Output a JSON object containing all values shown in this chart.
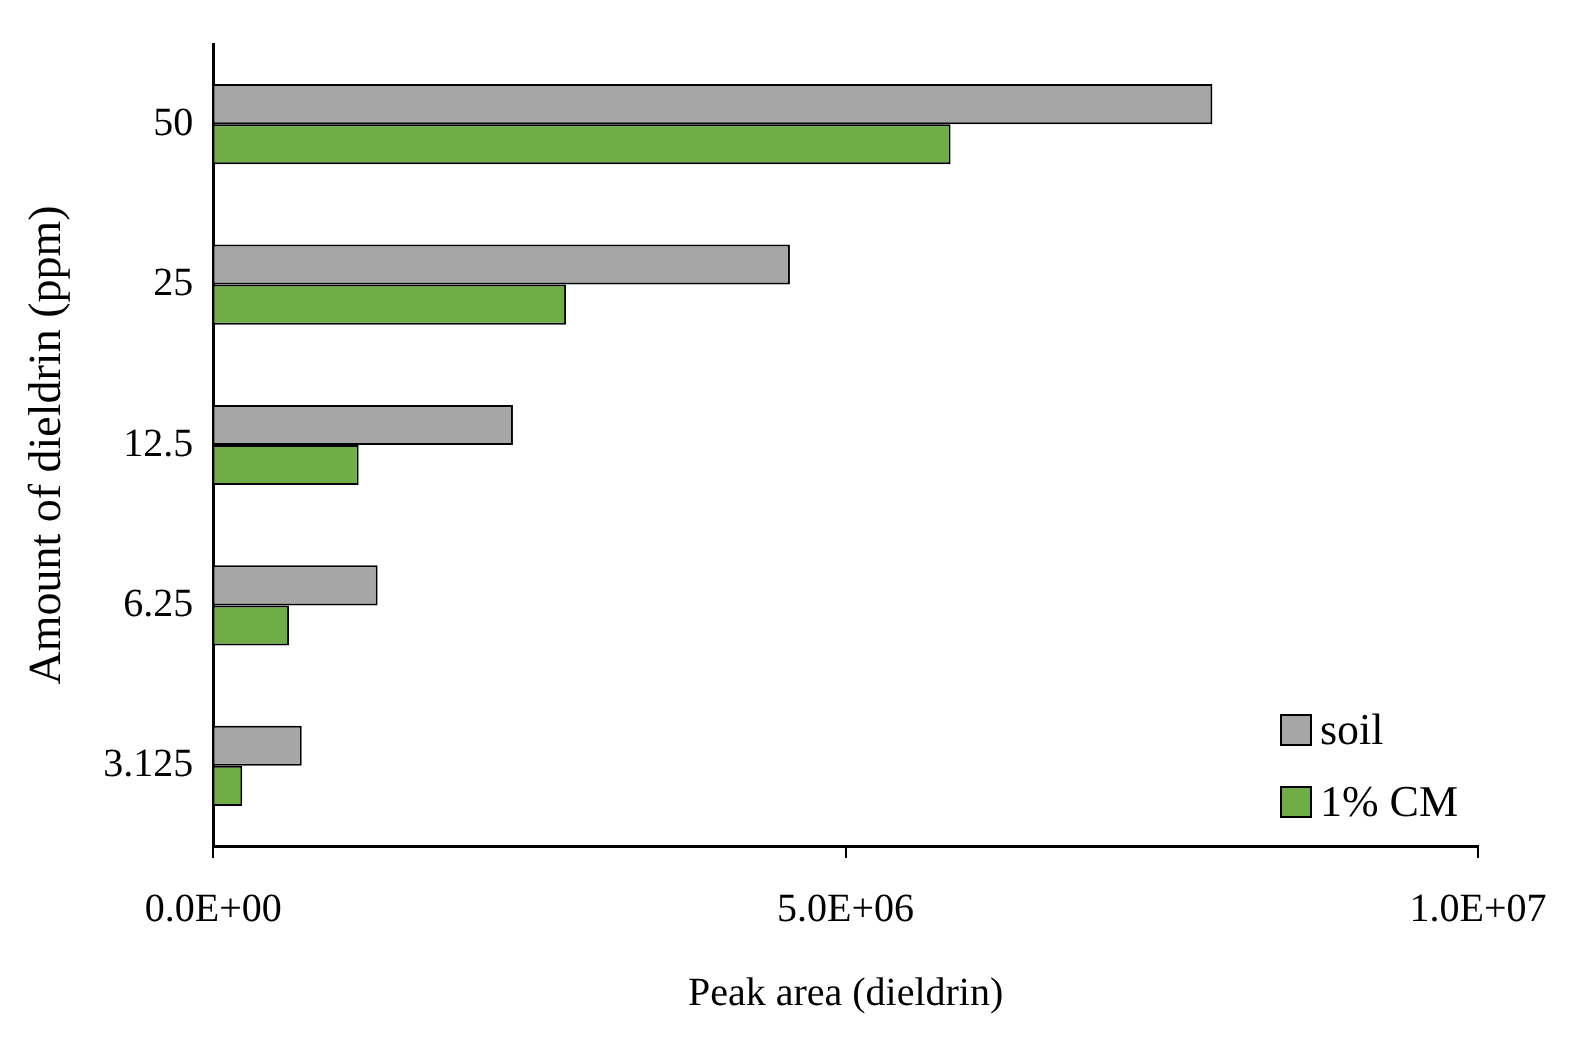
{
  "chart_data": {
    "type": "bar",
    "orientation": "horizontal",
    "xlabel": "Peak area (dieldrin)",
    "ylabel": "Amount of dieldrin (ppm)",
    "categories": [
      "50",
      "25",
      "12.5",
      "6.25",
      "3.125"
    ],
    "series": [
      {
        "name": "soil",
        "color": "#a6a6a6",
        "values": [
          7900000,
          4560000,
          2370000,
          1300000,
          700000
        ]
      },
      {
        "name": "1% CM",
        "color": "#70ad47",
        "values": [
          5830000,
          2790000,
          1150000,
          600000,
          230000
        ]
      }
    ],
    "xlim": [
      0,
      10000000
    ],
    "xticks": [
      {
        "value": 0,
        "label": "0.0E+00"
      },
      {
        "value": 5000000,
        "label": "5.0E+06"
      },
      {
        "value": 10000000,
        "label": "1.0E+07"
      }
    ],
    "grid": false,
    "legend": "bottom right"
  }
}
